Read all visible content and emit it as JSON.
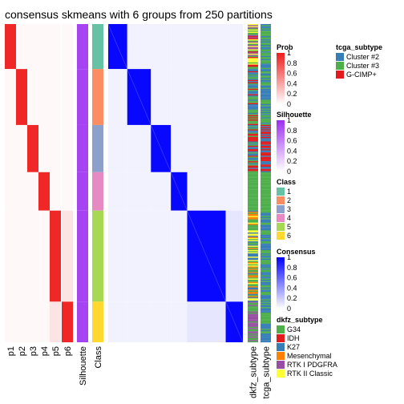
{
  "chart_data": {
    "type": "heatmap",
    "title": "consensus skmeans with 6 groups from 250 partitions",
    "n_samples": 290,
    "class_sizes": [
      41,
      51,
      43,
      35,
      83,
      37
    ],
    "class_colors": [
      "#66C2A5",
      "#FC8D62",
      "#8DA0CB",
      "#E78AC3",
      "#A6D854",
      "#FFD92F"
    ],
    "prob_columns": [
      "p1",
      "p2",
      "p3",
      "p4",
      "p5",
      "p6"
    ],
    "annotation_columns": [
      "Silhouette",
      "Class"
    ],
    "right_annotation_columns": [
      "dkfz_subtype",
      "tcga_subtype"
    ],
    "legends": {
      "prob": {
        "title": "Prob",
        "ticks": [
          "1",
          "0.8",
          "0.6",
          "0.4",
          "0.2",
          "0"
        ],
        "low": "#ffffff",
        "high": "#ee1c1c"
      },
      "silhouette": {
        "title": "Silhouette",
        "ticks": [
          "1",
          "0.8",
          "0.6",
          "0.4",
          "0.2",
          "0"
        ],
        "low": "#ffffff",
        "high": "#9c2ef0"
      },
      "class": {
        "title": "Class",
        "labels": [
          "1",
          "2",
          "3",
          "4",
          "5",
          "6"
        ]
      },
      "consensus": {
        "title": "Consensus",
        "ticks": [
          "1",
          "0.8",
          "0.6",
          "0.4",
          "0.2",
          "0"
        ],
        "low": "#ffffff",
        "high": "#0000ff"
      },
      "dkfz_subtype": {
        "title": "dkfz_subtype",
        "labels": [
          "G34",
          "IDH",
          "K27",
          "Mesenchymal",
          "RTK I PDGFRA",
          "RTK II Classic"
        ],
        "colors": [
          "#4daf4a",
          "#e41a1c",
          "#377eb8",
          "#ff7f00",
          "#984ea3",
          "#ffff33"
        ]
      },
      "tcga_subtype": {
        "title": "tcga_subtype",
        "labels": [
          "Cluster #2",
          "Cluster #3",
          "G-CIMP+"
        ],
        "colors": [
          "#377eb8",
          "#4daf4a",
          "#e41a1c"
        ]
      }
    }
  }
}
